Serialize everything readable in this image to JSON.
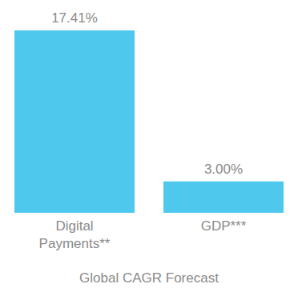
{
  "chart_data": {
    "type": "bar",
    "title": "Global CAGR Forecast",
    "categories": [
      "Digital Payments**",
      "GDP***"
    ],
    "values": [
      17.41,
      3.0
    ],
    "value_labels": [
      "17.41%",
      "3.00%"
    ],
    "color": "#4fc8ee",
    "data_labels": true,
    "tick_labels": "x",
    "grid": false
  }
}
